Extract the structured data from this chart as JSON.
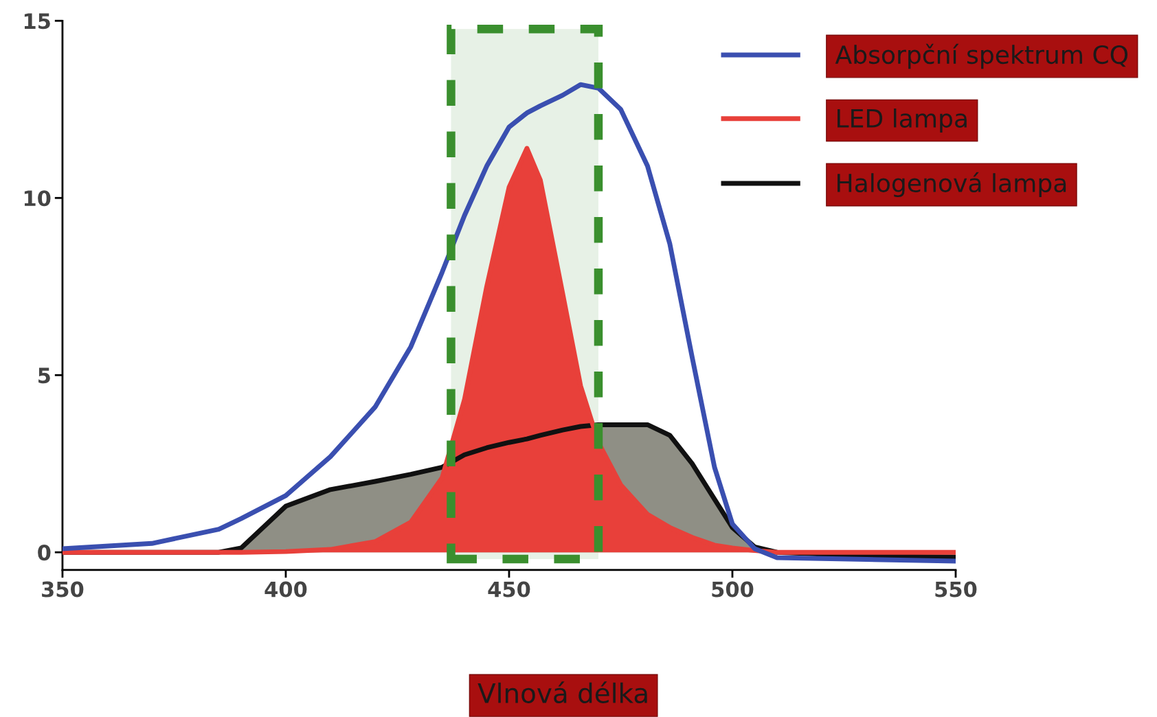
{
  "chart_data": {
    "type": "line",
    "xlabel": "Vlnová délka",
    "x": [
      350,
      370,
      385,
      390,
      400,
      410,
      420,
      428,
      435,
      440,
      445,
      450,
      454,
      457,
      462,
      466,
      470,
      475,
      481,
      486,
      491,
      496,
      500,
      505,
      510,
      530,
      550
    ],
    "series": [
      {
        "name": "Absorpční spektrum CQ",
        "color": "#3a4fb0",
        "values": [
          0.1,
          0.25,
          0.65,
          0.95,
          1.6,
          2.7,
          4.1,
          5.8,
          7.9,
          9.5,
          10.9,
          12.0,
          12.4,
          12.6,
          12.9,
          13.2,
          13.1,
          12.5,
          10.9,
          8.7,
          5.5,
          2.4,
          0.8,
          0.1,
          -0.15,
          -0.2,
          -0.25
        ]
      },
      {
        "name": "LED lampa",
        "color": "#e8403a",
        "type": "area",
        "values": [
          0,
          0,
          0,
          0,
          0.02,
          0.08,
          0.3,
          0.85,
          2.1,
          4.3,
          7.5,
          10.3,
          11.4,
          10.5,
          7.3,
          4.7,
          3.1,
          1.9,
          1.07,
          0.7,
          0.42,
          0.2,
          0.12,
          0.05,
          0,
          0,
          0
        ]
      },
      {
        "name": "Halogenová lampa",
        "color": "#111111",
        "type": "area",
        "values": [
          0,
          0,
          0,
          0.12,
          1.3,
          1.77,
          2.0,
          2.2,
          2.4,
          2.75,
          2.95,
          3.1,
          3.2,
          3.3,
          3.45,
          3.55,
          3.6,
          3.6,
          3.6,
          3.3,
          2.5,
          1.5,
          0.7,
          0.15,
          0,
          -0.1,
          -0.14
        ]
      }
    ],
    "bands": [
      {
        "axis": "x",
        "from": 437,
        "to": 470,
        "color": "#3a8f2e"
      }
    ],
    "xlim": [
      350,
      550
    ],
    "ylim": [
      -0.5,
      15
    ],
    "xticks": [
      350,
      400,
      450,
      500,
      550
    ],
    "yticks": [
      0,
      5,
      10,
      15
    ],
    "grid": false,
    "legend": "right",
    "line_style": "solid",
    "marker": "none"
  }
}
